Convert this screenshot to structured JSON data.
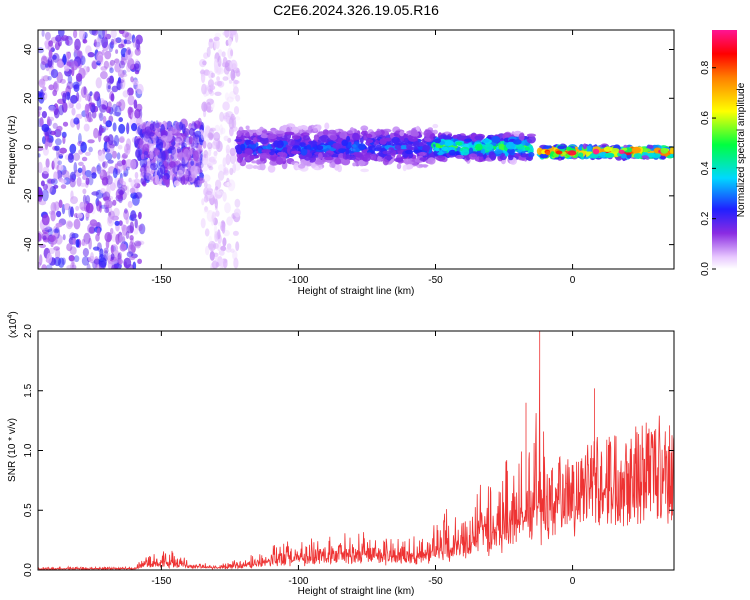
{
  "figure_title": "C2E6.2024.326.19.05.R16",
  "chart_data": [
    {
      "type": "heatmap",
      "title": "",
      "xlabel": "Height of straight line (km)",
      "ylabel": "Frequency (Hz)",
      "xlim": [
        -195,
        37
      ],
      "ylim": [
        -50,
        48
      ],
      "xticks": [
        -150,
        -100,
        -50,
        0
      ],
      "yticks": [
        -40,
        -20,
        0,
        20,
        40
      ],
      "colorbar": {
        "label": "Normalized spectral amplitude",
        "range": [
          0,
          0.95
        ],
        "ticks": [
          0.0,
          0.2,
          0.4,
          0.6,
          0.8
        ],
        "tick_labels": [
          "0.0",
          "0.2",
          "0.4",
          "0.6",
          "0.8"
        ],
        "colormap": "rainbow (white-violet-blue-cyan-green-yellow-red-pink)"
      },
      "description_of_field": [
        {
          "x_range": [
            -195,
            -157
          ],
          "freq_spread_hz": [
            -50,
            48
          ],
          "amplitude": 0.15
        },
        {
          "x_range": [
            -157,
            -135
          ],
          "freq_spread_hz": [
            -15,
            10
          ],
          "amplitude": 0.15
        },
        {
          "x_range": [
            -135,
            -122
          ],
          "freq_spread_hz": [
            -50,
            48
          ],
          "amplitude": 0.05
        },
        {
          "x_range": [
            -122,
            -50
          ],
          "freq_center_hz": 0,
          "freq_halfwidth_hz": 8,
          "amplitude": 0.25
        },
        {
          "x_range": [
            -50,
            -15
          ],
          "freq_center_hz": 0,
          "freq_halfwidth_hz": 5,
          "amplitude": 0.45
        },
        {
          "x_range": [
            -12,
            37
          ],
          "freq_center_hz": -2,
          "freq_halfwidth_hz": 2,
          "amplitude": 0.85
        }
      ]
    },
    {
      "type": "line",
      "title": "",
      "xlabel": "Height of straight line (km)",
      "ylabel": "SNR (10 * v/v)",
      "y_multiplier_label": "(x10",
      "y_multiplier_exp": "4",
      "y_multiplier_close": ")",
      "xlim": [
        -195,
        37
      ],
      "ylim": [
        0,
        2.0
      ],
      "xticks": [
        -150,
        -100,
        -50,
        0
      ],
      "yticks": [
        0.0,
        0.5,
        1.0,
        1.5,
        2.0
      ],
      "ytick_labels": [
        "0.0",
        "0.5",
        "1.0",
        "1.5",
        "2.0"
      ],
      "series": [
        {
          "color": "#ee3333",
          "envelope": {
            "x": [
              -195,
              -160,
              -155,
              -145,
              -140,
              -130,
              -120,
              -110,
              -100,
              -90,
              -80,
              -70,
              -60,
              -50,
              -45,
              -40,
              -35,
              -30,
              -25,
              -20,
              -15,
              -12,
              -10,
              -5,
              0,
              5,
              8,
              10,
              15,
              20,
              25,
              30,
              37
            ],
            "base": [
              0.01,
              0.01,
              0.05,
              0.06,
              0.04,
              0.02,
              0.04,
              0.08,
              0.1,
              0.12,
              0.15,
              0.12,
              0.12,
              0.15,
              0.2,
              0.25,
              0.3,
              0.35,
              0.4,
              0.45,
              0.5,
              0.55,
              0.7,
              0.8,
              0.9,
              0.95,
              1.0,
              1.1,
              1.15,
              1.2,
              1.25,
              1.28,
              1.3
            ],
            "peak": [
              0.03,
              0.03,
              0.15,
              0.18,
              0.08,
              0.05,
              0.1,
              0.25,
              0.28,
              0.3,
              0.4,
              0.35,
              0.3,
              0.4,
              0.6,
              0.65,
              0.8,
              0.9,
              1.0,
              1.1,
              1.4,
              2.0,
              1.2,
              1.1,
              1.0,
              1.05,
              1.52,
              1.2,
              1.2,
              1.3,
              1.35,
              1.35,
              1.33
            ]
          }
        }
      ]
    }
  ]
}
